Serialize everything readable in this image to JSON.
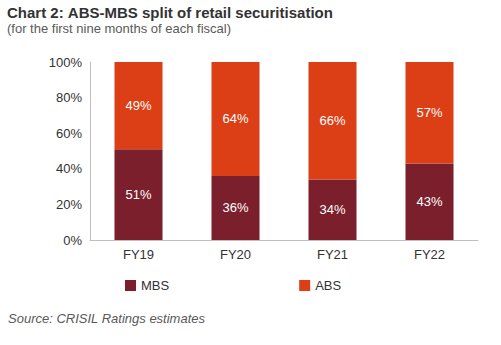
{
  "chart_data": {
    "type": "bar",
    "title": "Chart 2: ABS-MBS split of retail securitisation",
    "subtitle": "(for the first nine months of each fiscal)",
    "annotations": [
      "Source: CRISIL Ratings estimates"
    ],
    "categories": [
      "FY19",
      "FY20",
      "FY21",
      "FY22"
    ],
    "series": [
      {
        "name": "MBS",
        "color": "#7a1f2b",
        "values": [
          51,
          36,
          34,
          43
        ],
        "value_labels": [
          "51%",
          "36%",
          "34%",
          "43%"
        ]
      },
      {
        "name": "ABS",
        "color": "#dc3f16",
        "values": [
          49,
          64,
          66,
          57
        ],
        "value_labels": [
          "49%",
          "64%",
          "66%",
          "57%"
        ]
      }
    ],
    "stacked": true,
    "data_labels": true,
    "ylim": [
      0,
      100
    ],
    "yticks": [
      {
        "value": 0,
        "label": "0%"
      },
      {
        "value": 20,
        "label": "20%"
      },
      {
        "value": 40,
        "label": "40%"
      },
      {
        "value": 60,
        "label": "60%"
      },
      {
        "value": 80,
        "label": "80%"
      },
      {
        "value": 100,
        "label": "100%"
      }
    ],
    "grid": false,
    "legend": "bottom"
  }
}
